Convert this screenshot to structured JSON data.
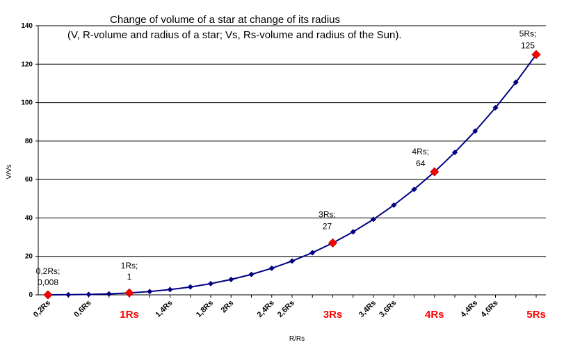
{
  "chart_data": {
    "type": "line",
    "title_line1": "Change of volume of a star at change of its radius",
    "title_line2": "(V, R-volume and radius of a star; Vs, Rs-volume and radius of the Sun).",
    "xlabel": "R/Rs",
    "ylabel": "V/Vs",
    "ylim": [
      0,
      140
    ],
    "yticks": [
      0,
      20,
      40,
      60,
      80,
      100,
      120,
      140
    ],
    "grid": true,
    "x": [
      0.2,
      0.4,
      0.6,
      0.8,
      1.0,
      1.2,
      1.4,
      1.6,
      1.8,
      2.0,
      2.2,
      2.4,
      2.6,
      2.8,
      3.0,
      3.2,
      3.4,
      3.6,
      3.8,
      4.0,
      4.2,
      4.4,
      4.6,
      4.8,
      5.0
    ],
    "series": [
      {
        "values": [
          0.008,
          0.064,
          0.216,
          0.512,
          1,
          1.728,
          2.744,
          4.096,
          5.832,
          8,
          10.648,
          13.824,
          17.576,
          21.952,
          27,
          32.768,
          39.304,
          46.656,
          54.872,
          64,
          74.088,
          85.184,
          97.336,
          110.592,
          125
        ],
        "color": "#000080",
        "marker_color": "#000080"
      }
    ],
    "highlight_color": "#ff0000",
    "highlights": [
      {
        "x": 0.2,
        "y": 0.008,
        "label_line1": "0,2Rs;",
        "label_line2": "0,008"
      },
      {
        "x": 1.0,
        "y": 1,
        "label_line1": "1Rs;",
        "label_line2": "1"
      },
      {
        "x": 3.0,
        "y": 27,
        "label_line1": "3Rs;",
        "label_line2": "27"
      },
      {
        "x": 4.0,
        "y": 64,
        "label_line1": "4Rs;",
        "label_line2": "64"
      },
      {
        "x": 5.0,
        "y": 125,
        "label_line1": "5Rs;",
        "label_line2": "125"
      }
    ],
    "xtick_labels": [
      {
        "x": 0.2,
        "text": "0,2Rs",
        "style": "normal"
      },
      {
        "x": 0.6,
        "text": "0,6Rs",
        "style": "normal"
      },
      {
        "x": 1.0,
        "text": "1Rs",
        "style": "highlight"
      },
      {
        "x": 1.4,
        "text": "1,4Rs",
        "style": "normal"
      },
      {
        "x": 1.8,
        "text": "1,8Rs",
        "style": "normal"
      },
      {
        "x": 2.0,
        "text": "2Rs",
        "style": "normal"
      },
      {
        "x": 2.4,
        "text": "2,4Rs",
        "style": "normal"
      },
      {
        "x": 2.6,
        "text": "2,6Rs",
        "style": "normal"
      },
      {
        "x": 3.0,
        "text": "3Rs",
        "style": "highlight"
      },
      {
        "x": 3.4,
        "text": "3,4Rs",
        "style": "normal"
      },
      {
        "x": 3.6,
        "text": "3,6Rs",
        "style": "normal"
      },
      {
        "x": 4.0,
        "text": "4Rs",
        "style": "highlight"
      },
      {
        "x": 4.4,
        "text": "4,4Rs",
        "style": "normal"
      },
      {
        "x": 4.6,
        "text": "4,6Rs",
        "style": "normal"
      },
      {
        "x": 5.0,
        "text": "5Rs",
        "style": "highlight"
      }
    ]
  }
}
